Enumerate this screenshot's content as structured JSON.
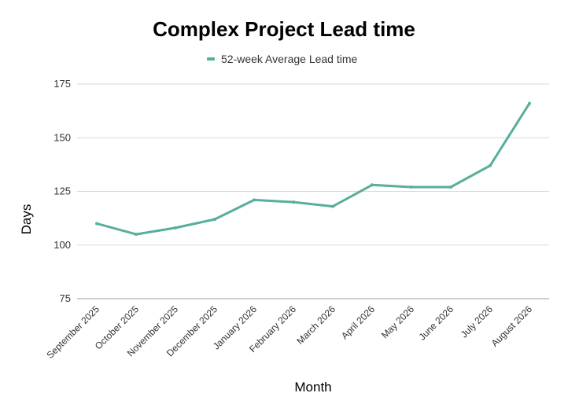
{
  "chart_data": {
    "type": "line",
    "title": "Complex Project Lead time",
    "xlabel": "Month",
    "ylabel": "Days",
    "categories": [
      "September 2025",
      "October 2025",
      "November 2025",
      "December 2025",
      "January 2026",
      "February 2026",
      "March 2026",
      "April 2026",
      "May 2026",
      "June 2026",
      "July 2026",
      "August 2026"
    ],
    "series": [
      {
        "name": "52-week Average Lead time",
        "color": "#57ae9c",
        "values": [
          110,
          105,
          108,
          112,
          121,
          120,
          118,
          128,
          127,
          127,
          137,
          166
        ]
      }
    ],
    "ylim": [
      75,
      175
    ],
    "yticks": [
      75,
      100,
      125,
      150,
      175
    ],
    "grid": true,
    "legend_position": "top-center"
  }
}
